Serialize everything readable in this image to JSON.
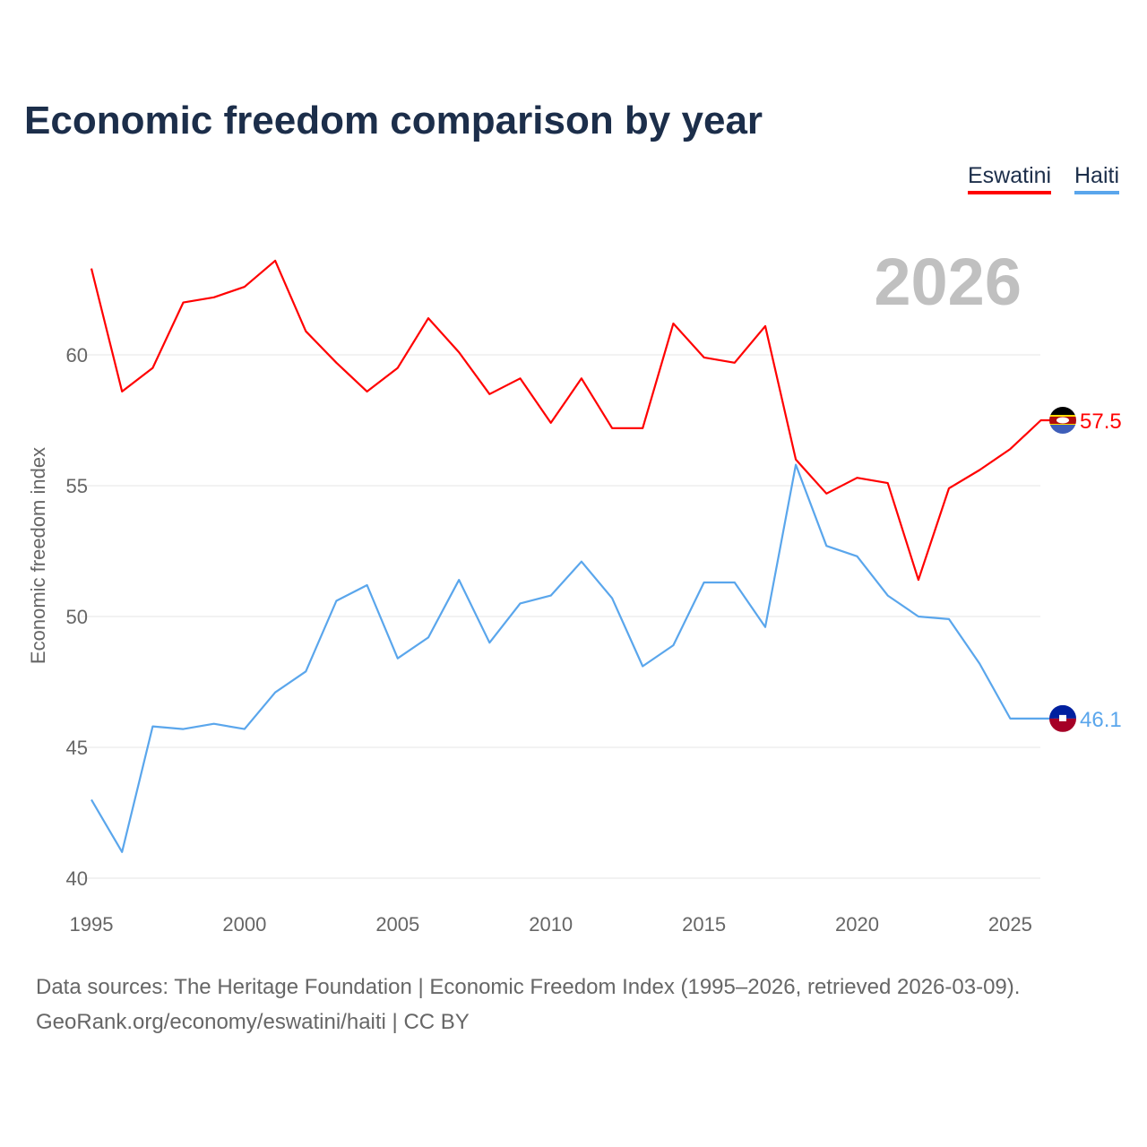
{
  "title": "Economic freedom comparison by year",
  "footer": {
    "line1": "Data sources: The Heritage Foundation | Economic Freedom Index (1995–2026, retrieved 2026-03-09).",
    "line2": "GeoRank.org/economy/eswatini/haiti | CC BY"
  },
  "chart_data": {
    "type": "line",
    "title": "Economic freedom comparison by year",
    "year_label": "2026",
    "xlabel": "",
    "ylabel": "Economic freedom index",
    "xlim": [
      1995,
      2026
    ],
    "ylim": [
      40,
      64
    ],
    "xticks": [
      "1995",
      "2000",
      "2005",
      "2010",
      "2015",
      "2020",
      "2025"
    ],
    "yticks": [
      "40",
      "45",
      "50",
      "55",
      "60"
    ],
    "grid": true,
    "legend_position": "top-right",
    "x": [
      1995,
      1996,
      1997,
      1998,
      1999,
      2000,
      2001,
      2002,
      2003,
      2004,
      2005,
      2006,
      2007,
      2008,
      2009,
      2010,
      2011,
      2012,
      2013,
      2014,
      2015,
      2016,
      2017,
      2018,
      2019,
      2020,
      2021,
      2022,
      2023,
      2024,
      2025,
      2026
    ],
    "series": [
      {
        "name": "Eswatini",
        "color": "#ff0000",
        "end_label": "57.5",
        "values": [
          63.3,
          58.6,
          59.5,
          62.0,
          62.2,
          62.6,
          63.6,
          60.9,
          59.7,
          58.6,
          59.5,
          61.4,
          60.1,
          58.5,
          59.1,
          57.4,
          59.1,
          57.2,
          57.2,
          61.2,
          59.9,
          59.7,
          61.1,
          56.0,
          54.7,
          55.3,
          55.1,
          51.4,
          54.9,
          55.6,
          56.4,
          57.5
        ]
      },
      {
        "name": "Haiti",
        "color": "#5aa6ec",
        "end_label": "46.1",
        "values": [
          43.0,
          41.0,
          45.8,
          45.7,
          45.9,
          45.7,
          47.1,
          47.9,
          50.6,
          51.2,
          48.4,
          49.2,
          51.4,
          49.0,
          50.5,
          50.8,
          52.1,
          50.7,
          48.1,
          48.9,
          51.3,
          51.3,
          49.6,
          55.8,
          52.7,
          52.3,
          50.8,
          50.0,
          49.9,
          48.2,
          46.1,
          46.1
        ]
      }
    ]
  }
}
